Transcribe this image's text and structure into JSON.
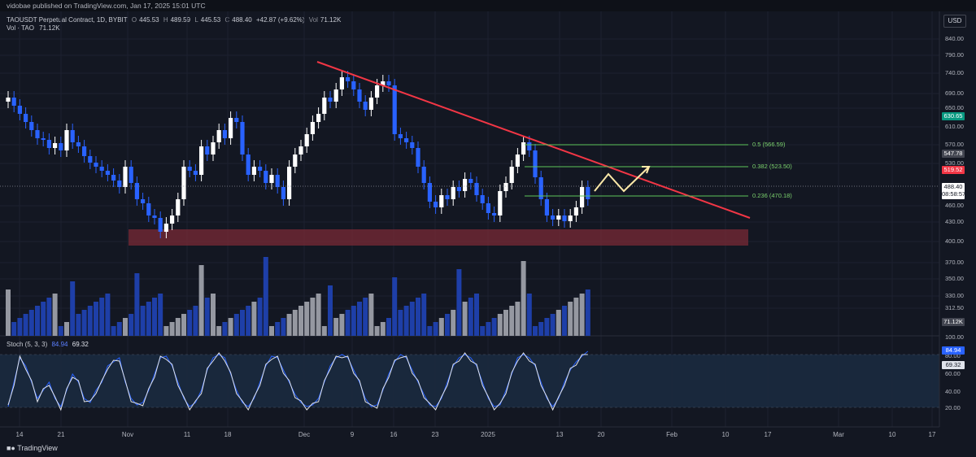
{
  "header": {
    "published": "vidobae published on TradingView.com, Jan 17, 2025 15:01 UTC"
  },
  "legend": {
    "symbol": "TAOUSDT Perpetual Contract, 1D, BYBIT",
    "o_label": "O",
    "o": "445.53",
    "h_label": "H",
    "h": "489.59",
    "l_label": "L",
    "l": "445.53",
    "c_label": "C",
    "c": "488.40",
    "change": "+42.87 (+9.62%)",
    "vol_label": "Vol",
    "vol": "71.12K",
    "vol_line_label": "Vol · TAO",
    "vol_line_value": "71.12K",
    "up_color": "#ffffff",
    "down_color": "#2962ff"
  },
  "currency_button": "USD",
  "price_axis": [
    "840.00",
    "790.00",
    "740.00",
    "690.00",
    "650.00",
    "610.00",
    "570.00",
    "530.00",
    "460.00",
    "430.00",
    "400.00",
    "370.00",
    "350.00",
    "330.00",
    "312.50",
    "100.00",
    "80.00",
    "60.00",
    "40.00",
    "20.00"
  ],
  "price_tags": {
    "level_630": "630.65",
    "level_547": "547.78",
    "level_519": "519.52",
    "last_price": "488.40",
    "countdown": "08:58:57",
    "volume": "71.12K",
    "stoch_k": "84.94",
    "stoch_d": "69.32"
  },
  "fib_levels": [
    {
      "label": "0.5 (566.59)",
      "price": 566.59
    },
    {
      "label": "0.382 (523.50)",
      "price": 523.5
    },
    {
      "label": "0.236 (470.18)",
      "price": 470.18
    }
  ],
  "stoch": {
    "label": "Stoch (5, 3, 3)",
    "k": "84.94",
    "d": "69.32",
    "k_color": "#2962ff",
    "d_color": "#e0e3eb",
    "overbought": 80,
    "oversold": 20
  },
  "time_axis": [
    "14",
    "21",
    "Nov",
    "11",
    "18",
    "Dec",
    "9",
    "16",
    "23",
    "2025",
    "13",
    "20",
    "Feb",
    "10",
    "17",
    "Mar",
    "10",
    "17"
  ],
  "footer_logo": "TradingView",
  "annotations": {
    "support_zone": "red rectangle 392–420",
    "trendline_color": "#f23645",
    "projection_color": "#ffe9a8"
  }
}
